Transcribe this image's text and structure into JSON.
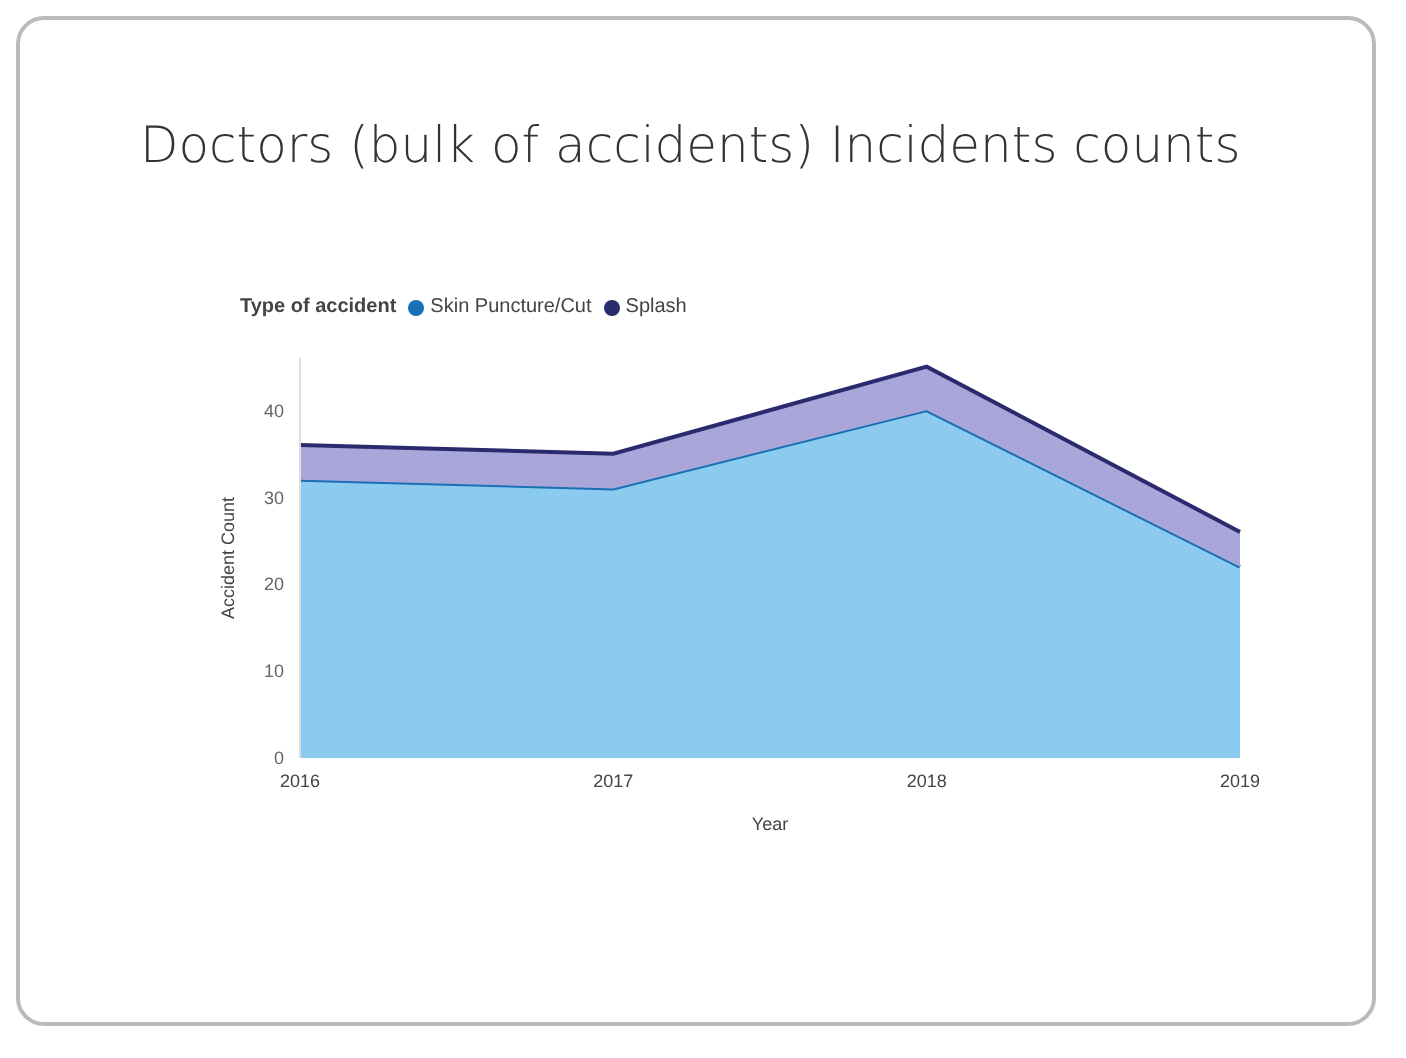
{
  "chart_data": {
    "type": "area",
    "title": "Doctors (bulk of accidents) Incidents counts",
    "xlabel": "Year",
    "ylabel": "Accident Count",
    "legend_title": "Type of accident",
    "categories": [
      "2016",
      "2017",
      "2018",
      "2019"
    ],
    "series": [
      {
        "name": "Skin Puncture/Cut",
        "color": "#1a6fb5",
        "values": [
          32,
          31,
          40,
          22
        ]
      },
      {
        "name": "Splash",
        "color": "#2a2a6e",
        "values": [
          4,
          4,
          5,
          4
        ]
      }
    ],
    "stacked": true,
    "ylim": [
      0,
      46
    ],
    "yticks": [
      0,
      10,
      20,
      30,
      40
    ],
    "grid": false,
    "legend": "top left"
  }
}
